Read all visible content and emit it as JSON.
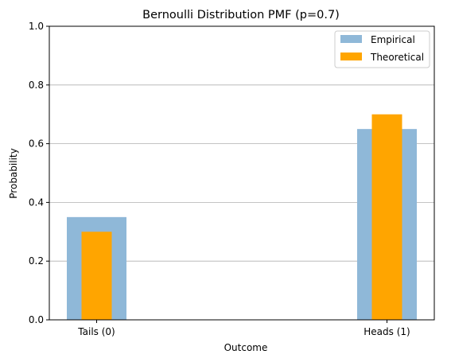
{
  "chart_data": {
    "type": "bar",
    "title": "Bernoulli Distribution PMF (p=0.7)",
    "xlabel": "Outcome",
    "ylabel": "Probability",
    "categories": [
      "Tails (0)",
      "Heads (1)"
    ],
    "ylim": [
      0,
      1
    ],
    "yticks": [
      "0.0",
      "0.2",
      "0.4",
      "0.6",
      "0.8",
      "1.0"
    ],
    "grid": "y-axis",
    "legend_position": "top-right",
    "series": [
      {
        "name": "Empirical",
        "values": [
          0.35,
          0.65
        ],
        "color": "#8fb8d8"
      },
      {
        "name": "Theoretical",
        "values": [
          0.3,
          0.7
        ],
        "color": "#ffa500"
      }
    ]
  }
}
